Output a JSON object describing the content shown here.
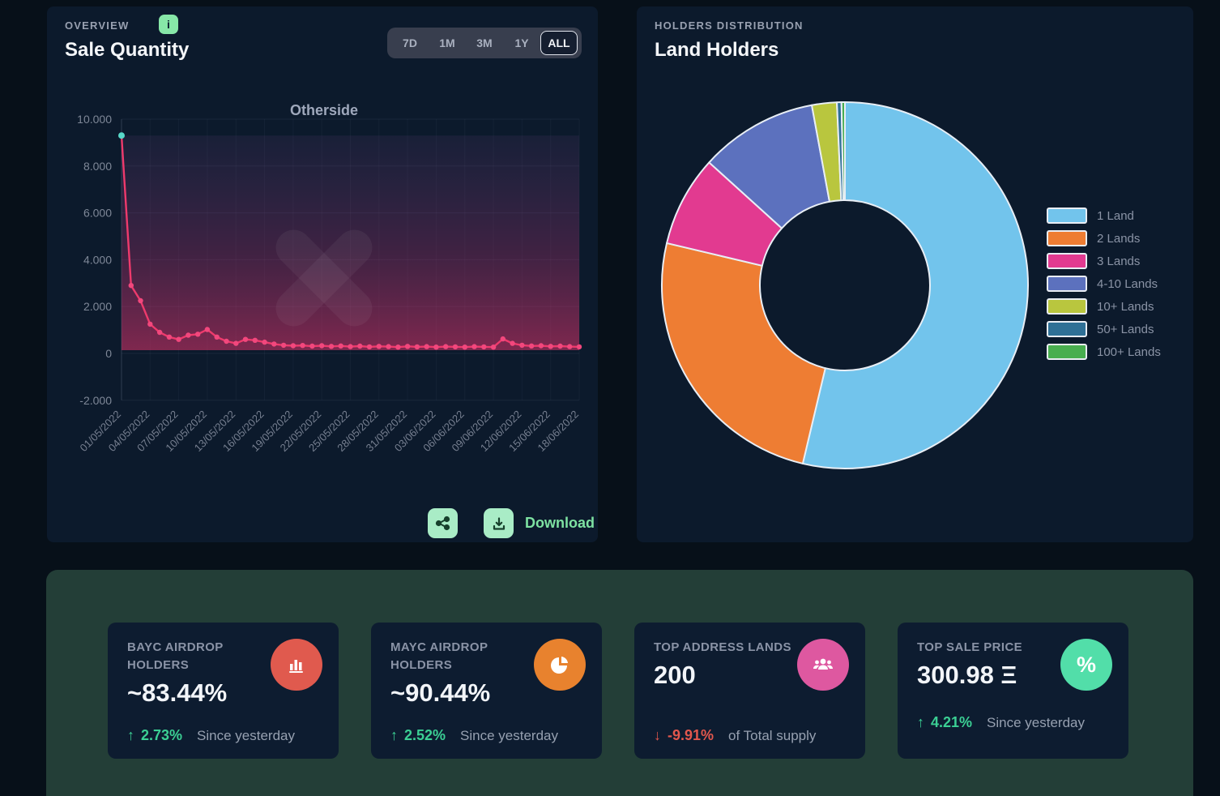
{
  "colors": {
    "page_bg": "#071019",
    "panel_bg": "#0C1A2C",
    "green_panel_bg": "#233E37",
    "card_bg": "#0D1C30",
    "accent_mint": "#87E7A8",
    "delta_up": "#3BCF94",
    "delta_down": "#E2574D",
    "line_color": "#EE3A6C",
    "first_point_color": "#58D9C9"
  },
  "overview_panel": {
    "eyebrow": "OVERVIEW",
    "info_icon_glyph": "i",
    "title": "Sale Quantity",
    "range_buttons": [
      "7D",
      "1M",
      "3M",
      "1Y",
      "ALL"
    ],
    "selected_range": "ALL",
    "download_label": "Download"
  },
  "holders_panel": {
    "eyebrow": "HOLDERS DISTRIBUTION",
    "title": "Land Holders"
  },
  "chart_data": [
    {
      "type": "line",
      "title": "Otherside",
      "x_tick_labels": [
        "01/05/2022",
        "04/05/2022",
        "07/05/2022",
        "10/05/2022",
        "13/05/2022",
        "16/05/2022",
        "19/05/2022",
        "22/05/2022",
        "25/05/2022",
        "28/05/2022",
        "31/05/2022",
        "03/06/2022",
        "06/06/2022",
        "09/06/2022",
        "12/06/2022",
        "15/06/2022",
        "18/06/2022"
      ],
      "values": [
        9300,
        2900,
        2250,
        1250,
        900,
        700,
        600,
        780,
        820,
        1020,
        700,
        520,
        430,
        600,
        560,
        480,
        400,
        350,
        330,
        340,
        310,
        330,
        300,
        320,
        290,
        310,
        280,
        300,
        290,
        270,
        300,
        280,
        290,
        270,
        290,
        280,
        270,
        290,
        280,
        270,
        620,
        430,
        350,
        320,
        330,
        300,
        310,
        290,
        280
      ],
      "ylim": [
        -2000,
        10000
      ],
      "y_ticks": [
        10000,
        8000,
        6000,
        4000,
        2000,
        0,
        -2000
      ],
      "y_tick_labels": [
        "10.000",
        "8.000",
        "6.000",
        "4.000",
        "2.000",
        "0",
        "-2.000"
      ],
      "grid": true,
      "legend_position": "none"
    },
    {
      "type": "pie",
      "title": "Land Holders",
      "labels": [
        "1 Land",
        "2 Lands",
        "3 Lands",
        "4-10 Lands",
        "10+ Lands",
        "50+ Lands",
        "100+ Lands"
      ],
      "values_pct": [
        53.7,
        25.0,
        8.0,
        10.4,
        2.2,
        0.4,
        0.3
      ],
      "colors": [
        "#72C4EC",
        "#EE7D33",
        "#E23A90",
        "#5C71BE",
        "#B9C63E",
        "#2F7096",
        "#48AE4F"
      ],
      "donut": true,
      "legend_position": "right"
    }
  ],
  "stat_cards": [
    {
      "label": "BAYC AIRDROP HOLDERS",
      "value": "~83.44%",
      "icon": "bar-chart",
      "icon_bg": "#E05A4E",
      "delta": "2.73%",
      "delta_dir": "up",
      "note": "Since yesterday"
    },
    {
      "label": "MAYC AIRDROP HOLDERS",
      "value": "~90.44%",
      "icon": "pie-chart",
      "icon_bg": "#E8822E",
      "delta": "2.52%",
      "delta_dir": "up",
      "note": "Since yesterday"
    },
    {
      "label": "TOP ADDRESS LANDS",
      "value": "200",
      "icon": "users",
      "icon_bg": "#DE58A0",
      "delta": "-9.91%",
      "delta_dir": "down",
      "note": "of Total supply"
    },
    {
      "label": "TOP SALE PRICE",
      "value": "300.98 Ξ",
      "icon": "percent",
      "icon_bg": "#52DEA9",
      "delta": "4.21%",
      "delta_dir": "up",
      "note": "Since yesterday"
    }
  ]
}
